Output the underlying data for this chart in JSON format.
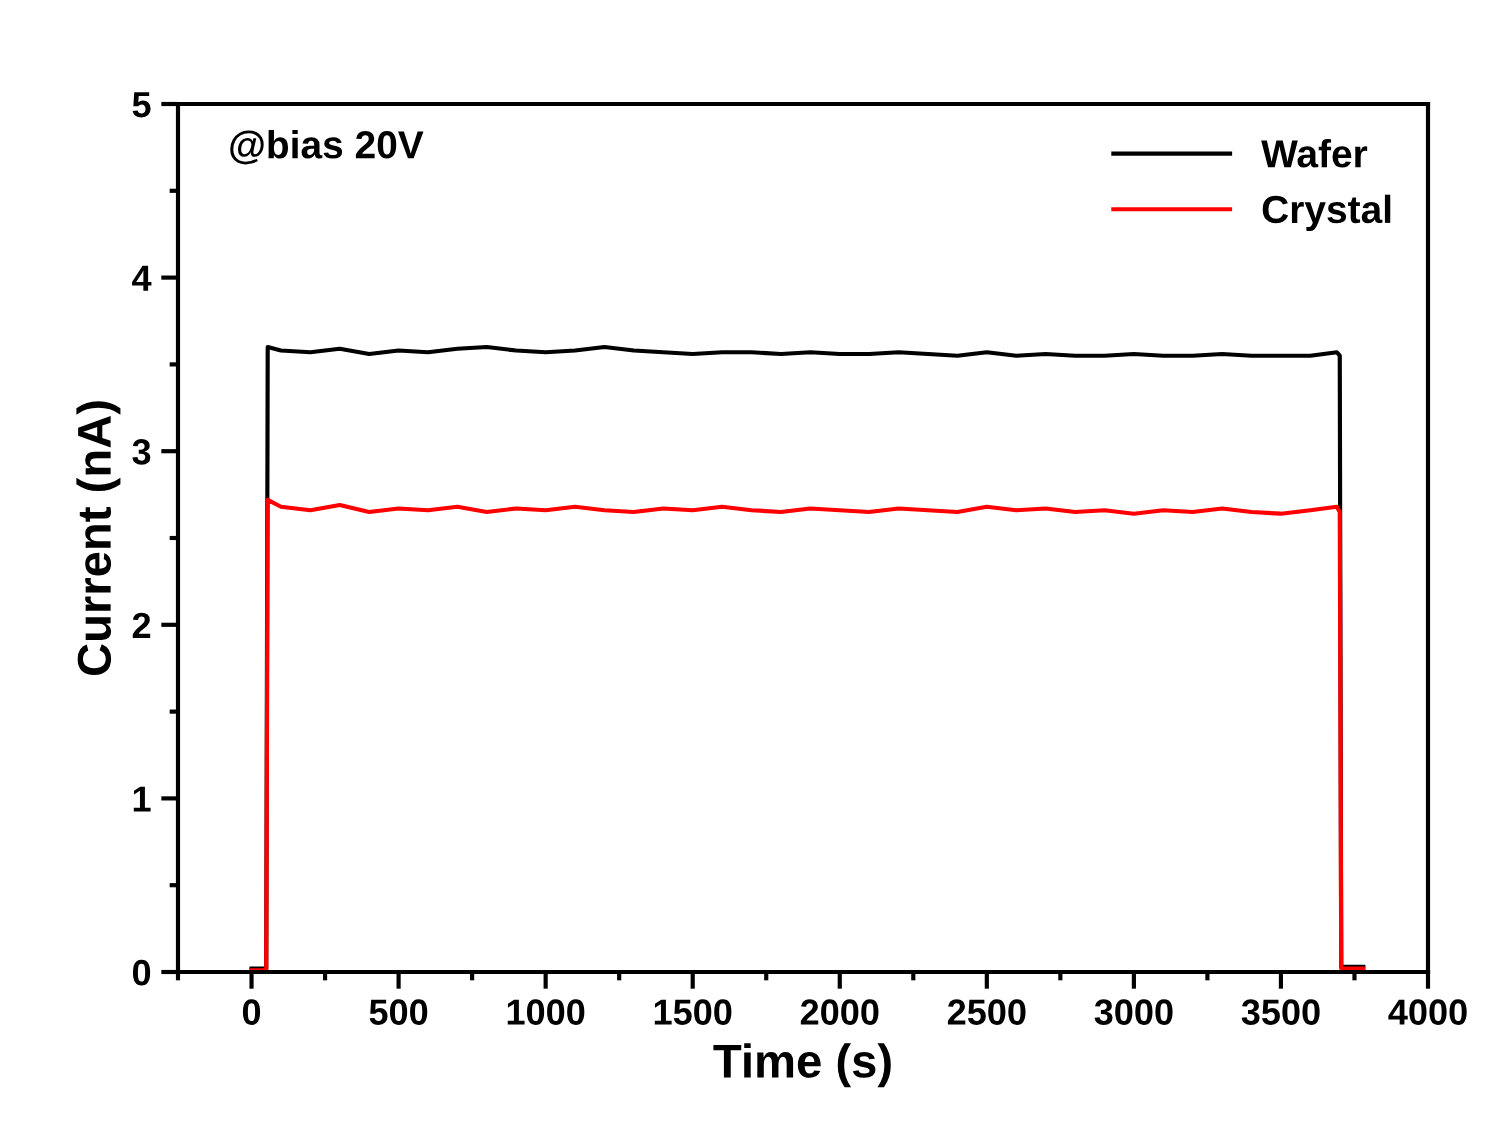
{
  "chart_data": {
    "type": "line",
    "xlabel": "Time (s)",
    "ylabel": "Current (nA)",
    "annotations": [
      "@bias 20V"
    ],
    "xlim": [
      -250,
      4000
    ],
    "xticks": [
      0,
      500,
      1000,
      1500,
      2000,
      2500,
      3000,
      3500,
      4000
    ],
    "ylim": [
      0,
      5
    ],
    "yticks": [
      0,
      1,
      2,
      3,
      4,
      5
    ],
    "grid": false,
    "legend": "top right",
    "series": [
      {
        "name": "Wafer",
        "color": "#000000",
        "x": [
          0,
          50,
          55,
          100,
          200,
          300,
          400,
          500,
          600,
          700,
          800,
          900,
          1000,
          1100,
          1200,
          1300,
          1400,
          1500,
          1600,
          1700,
          1800,
          1900,
          2000,
          2100,
          2200,
          2300,
          2400,
          2500,
          2600,
          2700,
          2800,
          2900,
          3000,
          3100,
          3200,
          3300,
          3400,
          3500,
          3600,
          3690,
          3700,
          3705,
          3780
        ],
        "values": [
          0.02,
          0.02,
          3.6,
          3.58,
          3.57,
          3.59,
          3.56,
          3.58,
          3.57,
          3.59,
          3.6,
          3.58,
          3.57,
          3.58,
          3.6,
          3.58,
          3.57,
          3.56,
          3.57,
          3.57,
          3.56,
          3.57,
          3.56,
          3.56,
          3.57,
          3.56,
          3.55,
          3.57,
          3.55,
          3.56,
          3.55,
          3.55,
          3.56,
          3.55,
          3.55,
          3.56,
          3.55,
          3.55,
          3.55,
          3.57,
          3.55,
          0.03,
          0.03
        ]
      },
      {
        "name": "Crystal",
        "color": "#ff0000",
        "x": [
          0,
          50,
          55,
          100,
          200,
          300,
          400,
          500,
          600,
          700,
          800,
          900,
          1000,
          1100,
          1200,
          1300,
          1400,
          1500,
          1600,
          1700,
          1800,
          1900,
          2000,
          2100,
          2200,
          2300,
          2400,
          2500,
          2600,
          2700,
          2800,
          2900,
          3000,
          3100,
          3200,
          3300,
          3400,
          3500,
          3600,
          3690,
          3700,
          3705,
          3780
        ],
        "values": [
          0.01,
          0.01,
          2.72,
          2.68,
          2.66,
          2.69,
          2.65,
          2.67,
          2.66,
          2.68,
          2.65,
          2.67,
          2.66,
          2.68,
          2.66,
          2.65,
          2.67,
          2.66,
          2.68,
          2.66,
          2.65,
          2.67,
          2.66,
          2.65,
          2.67,
          2.66,
          2.65,
          2.68,
          2.66,
          2.67,
          2.65,
          2.66,
          2.64,
          2.66,
          2.65,
          2.67,
          2.65,
          2.64,
          2.66,
          2.68,
          2.65,
          0.02,
          0.02
        ]
      }
    ]
  }
}
